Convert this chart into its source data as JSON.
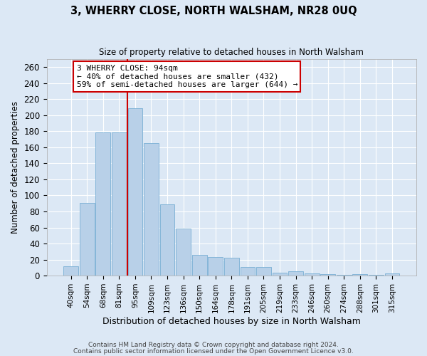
{
  "title": "3, WHERRY CLOSE, NORTH WALSHAM, NR28 0UQ",
  "subtitle": "Size of property relative to detached houses in North Walsham",
  "xlabel": "Distribution of detached houses by size in North Walsham",
  "ylabel": "Number of detached properties",
  "bar_labels": [
    "40sqm",
    "54sqm",
    "68sqm",
    "81sqm",
    "95sqm",
    "109sqm",
    "123sqm",
    "136sqm",
    "150sqm",
    "164sqm",
    "178sqm",
    "191sqm",
    "205sqm",
    "219sqm",
    "233sqm",
    "246sqm",
    "260sqm",
    "274sqm",
    "288sqm",
    "301sqm",
    "315sqm"
  ],
  "bar_values": [
    12,
    91,
    179,
    179,
    209,
    165,
    89,
    59,
    26,
    23,
    22,
    11,
    11,
    4,
    5,
    3,
    2,
    1,
    2,
    1,
    3
  ],
  "bar_color": "#b8d0e8",
  "bar_edge_color": "#7aafd4",
  "background_color": "#dce8f5",
  "grid_color": "#ffffff",
  "red_line_index": 4,
  "annotation_title": "3 WHERRY CLOSE: 94sqm",
  "annotation_line1": "← 40% of detached houses are smaller (432)",
  "annotation_line2": "59% of semi-detached houses are larger (644) →",
  "annotation_box_color": "#ffffff",
  "annotation_box_edge": "#cc0000",
  "red_line_color": "#cc0000",
  "ylim": [
    0,
    270
  ],
  "yticks": [
    0,
    20,
    40,
    60,
    80,
    100,
    120,
    140,
    160,
    180,
    200,
    220,
    240,
    260
  ],
  "footer1": "Contains HM Land Registry data © Crown copyright and database right 2024.",
  "footer2": "Contains public sector information licensed under the Open Government Licence v3.0."
}
